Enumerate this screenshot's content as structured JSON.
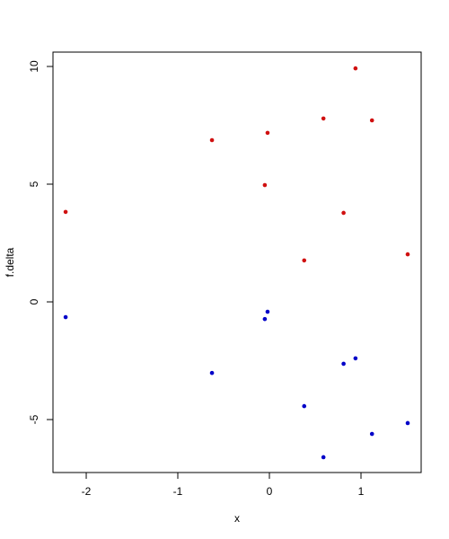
{
  "chart_data": {
    "type": "scatter",
    "x_label": "x",
    "y_label": "f.delta",
    "x": [
      -2.225,
      -0.627,
      -0.02,
      -0.05,
      0.38,
      0.59,
      0.81,
      0.94,
      1.12,
      1.51
    ],
    "series": [
      {
        "color": "#d01010",
        "values": [
          3.82,
          6.87,
          7.18,
          4.96,
          1.76,
          7.79,
          3.78,
          9.92,
          7.71,
          2.02
        ]
      },
      {
        "color": "#0000c8",
        "values": [
          -0.65,
          -3.02,
          -0.42,
          -0.73,
          -4.43,
          -6.6,
          -2.63,
          -2.4,
          -5.61,
          -5.15
        ]
      }
    ],
    "xlim": [
      -2.363,
      1.657
    ],
    "ylim": [
      -7.25,
      10.61
    ],
    "xticks": [
      -2,
      -1,
      0,
      1
    ],
    "yticks": [
      -5,
      0,
      5,
      10
    ]
  }
}
